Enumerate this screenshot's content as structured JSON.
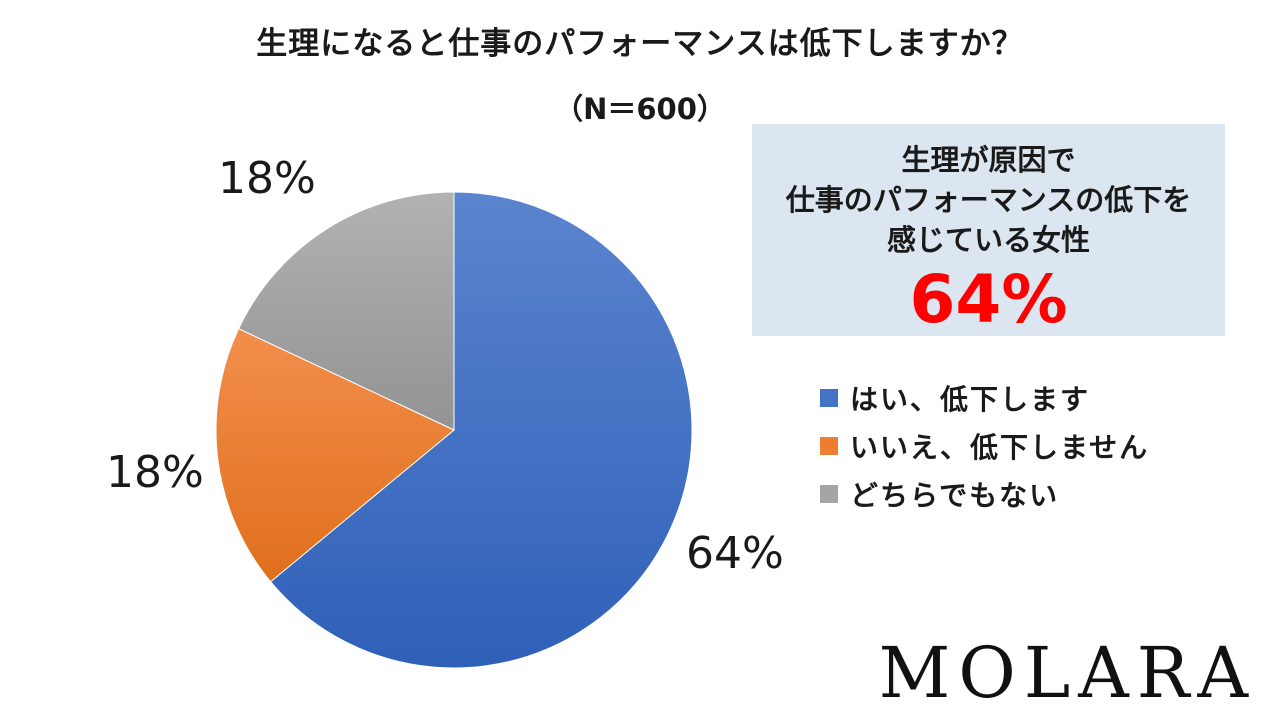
{
  "header": {
    "title": "生理になると仕事のパフォーマンスは低下しますか？",
    "sample": "（N＝600）"
  },
  "chart_data": {
    "type": "pie",
    "title": "生理になると仕事のパフォーマンスは低下しますか？",
    "subtitle": "（N＝600）",
    "categories": [
      "はい、低下します",
      "いいえ、低下しません",
      "どちらでもない"
    ],
    "values": [
      64,
      18,
      18
    ],
    "value_labels": [
      "64%",
      "18%",
      "18%"
    ],
    "colors": [
      "#4472c4",
      "#ed7d31",
      "#a5a5a5"
    ],
    "legend_position": "right"
  },
  "callout": {
    "line1": "生理が原因で",
    "line2": "仕事のパフォーマンスの低下を",
    "line3": "感じている女性",
    "value": "64%"
  },
  "legend": [
    {
      "label": "はい、低下します",
      "color": "#4472c4"
    },
    {
      "label": "いいえ、低下しません",
      "color": "#ed7d31"
    },
    {
      "label": "どちらでもない",
      "color": "#a5a5a5"
    }
  ],
  "brand": {
    "logo_text": "MOLARA"
  }
}
